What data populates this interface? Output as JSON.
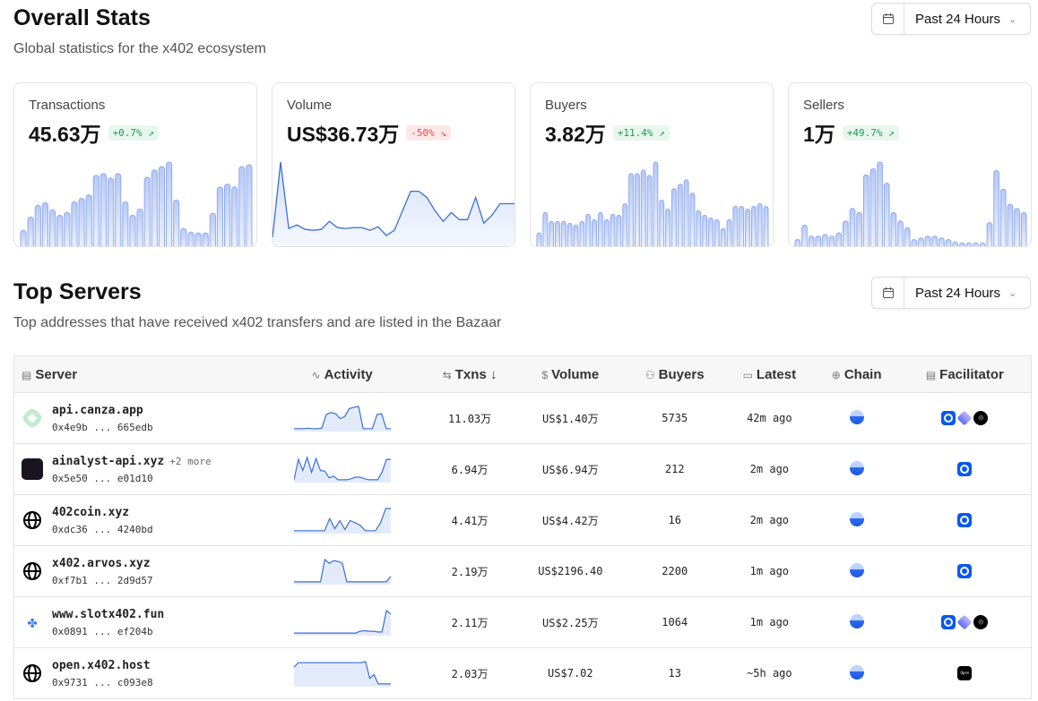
{
  "overall": {
    "title": "Overall Stats",
    "subtitle": "Global statistics for the x402 ecosystem",
    "range": "Past 24 Hours"
  },
  "cards": [
    {
      "label": "Transactions",
      "value": "45.63万",
      "change": "+0.7%",
      "trend": "up",
      "chart": "bar",
      "series": [
        18,
        33,
        46,
        49,
        41,
        35,
        38,
        50,
        54,
        58,
        80,
        82,
        77,
        82,
        50,
        35,
        42,
        78,
        86,
        90,
        95,
        52,
        20,
        16,
        15,
        15,
        37,
        67,
        70,
        67,
        90,
        92
      ]
    },
    {
      "label": "Volume",
      "value": "US$36.73万",
      "change": "-50%",
      "trend": "down",
      "chart": "area",
      "series": [
        10,
        95,
        20,
        24,
        19,
        18,
        19,
        28,
        21,
        20,
        21,
        21,
        18,
        22,
        12,
        18,
        40,
        62,
        62,
        55,
        40,
        28,
        38,
        30,
        30,
        55,
        26,
        35,
        48,
        48,
        48
      ]
    },
    {
      "label": "Buyers",
      "value": "3.82万",
      "change": "+11.4%",
      "trend": "up",
      "chart": "bar",
      "series": [
        15,
        38,
        28,
        28,
        28,
        26,
        24,
        28,
        36,
        30,
        38,
        30,
        36,
        35,
        48,
        82,
        82,
        86,
        80,
        95,
        52,
        42,
        65,
        70,
        75,
        60,
        40,
        35,
        32,
        30,
        20,
        30,
        45,
        45,
        42,
        45,
        48,
        45
      ]
    },
    {
      "label": "Sellers",
      "value": "1万",
      "change": "+49.7%",
      "trend": "up",
      "chart": "bar",
      "series": [
        8,
        25,
        12,
        12,
        14,
        12,
        16,
        30,
        45,
        40,
        85,
        92,
        100,
        75,
        40,
        30,
        22,
        8,
        10,
        12,
        12,
        10,
        8,
        5,
        4,
        4,
        4,
        4,
        28,
        90,
        68,
        50,
        45,
        40
      ]
    }
  ],
  "colors": {
    "accent": "#3b6fd8",
    "up": "#1a9b55",
    "down": "#e24b4b"
  },
  "servers": {
    "title": "Top Servers",
    "subtitle": "Top addresses that have received x402 transfers and are listed in the Bazaar",
    "range": "Past 24 Hours",
    "columns": [
      {
        "label": "Server",
        "icon": "server-icon"
      },
      {
        "label": "Activity",
        "icon": "activity-icon"
      },
      {
        "label": "Txns ↓",
        "icon": "arrows-icon"
      },
      {
        "label": "Volume",
        "icon": "dollar-icon"
      },
      {
        "label": "Buyers",
        "icon": "users-icon"
      },
      {
        "label": "Latest",
        "icon": "calendar-icon"
      },
      {
        "label": "Chain",
        "icon": "globe-icon"
      },
      {
        "label": "Facilitator",
        "icon": "server-icon"
      }
    ],
    "rows": [
      {
        "name": "api.canza.app",
        "more": "",
        "address": "0x4e9b ... 665edb",
        "logo": "canza",
        "activity": [
          5,
          5,
          5,
          6,
          5,
          5,
          6,
          40,
          45,
          42,
          30,
          35,
          55,
          58,
          60,
          5,
          5,
          5,
          40,
          42,
          5,
          5
        ],
        "txns": "11.03万",
        "volume": "US$1.40万",
        "buyers": "5735",
        "latest": "42m ago",
        "facilitators": [
          "base",
          "layer",
          "blk"
        ]
      },
      {
        "name": "ainalyst-api.xyz",
        "more": "+2 more",
        "address": "0x5e50 ... e01d10",
        "logo": "ainalyst",
        "activity": [
          5,
          60,
          30,
          65,
          25,
          62,
          30,
          28,
          10,
          15,
          5,
          5,
          5,
          8,
          12,
          12,
          8,
          5,
          5,
          5,
          25,
          60,
          60
        ],
        "txns": "6.94万",
        "volume": "US$6.94万",
        "buyers": "212",
        "latest": "2m ago",
        "facilitators": [
          "base"
        ]
      },
      {
        "name": "402coin.xyz",
        "more": "",
        "address": "0xdc36 ... 4240bd",
        "logo": "globe",
        "activity": [
          5,
          5,
          5,
          5,
          5,
          5,
          5,
          35,
          10,
          30,
          8,
          30,
          25,
          18,
          5,
          5,
          5,
          25,
          60,
          60
        ],
        "txns": "4.41万",
        "volume": "US$4.42万",
        "buyers": "16",
        "latest": "2m ago",
        "facilitators": [
          "base"
        ]
      },
      {
        "name": "x402.arvos.xyz",
        "more": "",
        "address": "0xf7b1 ... 2d9d57",
        "logo": "globe",
        "activity": [
          5,
          5,
          5,
          5,
          5,
          5,
          5,
          65,
          55,
          62,
          60,
          55,
          5,
          5,
          5,
          5,
          5,
          5,
          5,
          5,
          5,
          5,
          20
        ],
        "txns": "2.19万",
        "volume": "US$2196.40",
        "buyers": "2200",
        "latest": "1m ago",
        "facilitators": [
          "base"
        ]
      },
      {
        "name": "www.slotx402.fun",
        "more": "",
        "address": "0x0891 ... ef204b",
        "logo": "slot",
        "activity": [
          5,
          5,
          5,
          5,
          5,
          5,
          5,
          5,
          5,
          5,
          5,
          5,
          5,
          5,
          5,
          10,
          12,
          10,
          10,
          8,
          8,
          70,
          60
        ],
        "txns": "2.11万",
        "volume": "US$2.25万",
        "buyers": "1064",
        "latest": "1m ago",
        "facilitators": [
          "base",
          "layer",
          "blk"
        ]
      },
      {
        "name": "open.x402.host",
        "more": "",
        "address": "0x9731 ... c093e8",
        "logo": "globe",
        "activity": [
          50,
          62,
          62,
          62,
          62,
          62,
          62,
          62,
          62,
          62,
          62,
          62,
          62,
          62,
          62,
          62,
          62,
          65,
          20,
          30,
          5,
          5,
          5,
          5
        ],
        "txns": "2.03万",
        "volume": "US$7.02",
        "buyers": "13",
        "latest": "~5h ago",
        "facilitators": [
          "open"
        ]
      }
    ]
  }
}
